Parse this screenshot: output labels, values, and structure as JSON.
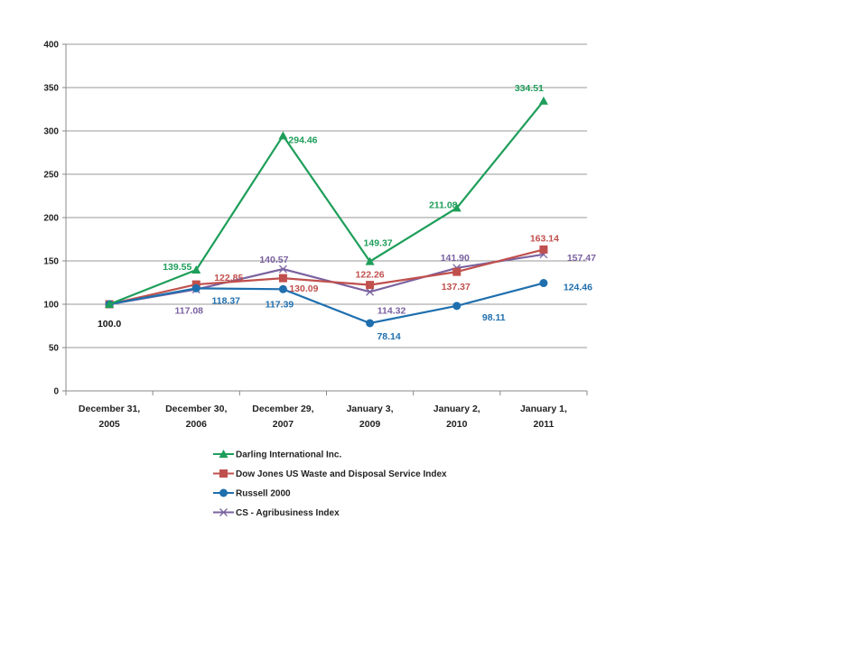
{
  "chart_data": {
    "type": "line",
    "title": "",
    "xlabel": "",
    "ylabel": "",
    "ylim": [
      0,
      400
    ],
    "yticks": [
      "0",
      "50",
      "100",
      "150",
      "200",
      "250",
      "300",
      "350",
      "400"
    ],
    "grid": true,
    "legend_placement": "bottom",
    "categories": [
      [
        "December  31,",
        "2005"
      ],
      [
        "December 30,",
        "2006"
      ],
      [
        "December 29,",
        "2007"
      ],
      [
        "January 3,",
        "2009"
      ],
      [
        "January 2,",
        "2010"
      ],
      [
        "January 1,",
        "2011"
      ]
    ],
    "series": [
      {
        "name": "Darling International Inc.",
        "color": "#1e9e5a",
        "marker": "triangle",
        "values": [
          100,
          139.55,
          294.46,
          149.37,
          211.08,
          334.51
        ],
        "labels": [
          null,
          "139.55",
          "294.46",
          "149.37",
          "211.08",
          "334.51"
        ]
      },
      {
        "name": "Dow Jones US Waste and Disposal Service Index",
        "color": "#c0504d",
        "marker": "square",
        "values": [
          100,
          122.85,
          130.09,
          122.26,
          137.37,
          163.14
        ],
        "labels": [
          null,
          "122.85",
          "130.09",
          "122.26",
          "137.37",
          "163.14"
        ]
      },
      {
        "name": "Russell 2000",
        "color": "#1f6fae",
        "marker": "circle",
        "values": [
          100,
          118.37,
          117.39,
          78.14,
          98.11,
          124.46
        ],
        "labels": [
          "100.0",
          "118.37",
          "117.39",
          "78.14",
          "98.11",
          "124.46"
        ]
      },
      {
        "name": "CS - Agribusiness Index",
        "color": "#7b62a0",
        "marker": "x",
        "values": [
          100,
          117.08,
          140.57,
          114.32,
          141.9,
          157.47
        ],
        "labels": [
          null,
          "117.08",
          "140.57",
          "114.32",
          "141.90",
          "157.47"
        ]
      }
    ]
  }
}
